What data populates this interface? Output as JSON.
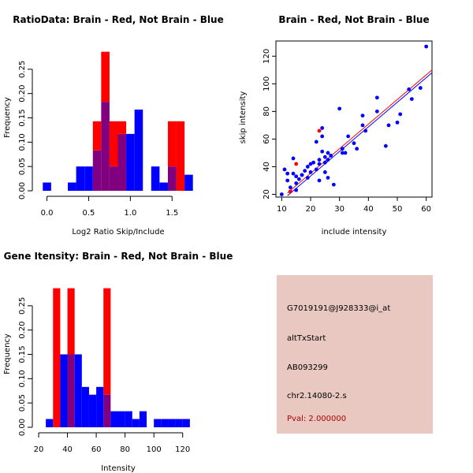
{
  "colors": {
    "red": "#ff0000",
    "blue": "#0000ff",
    "overlap": "#800080",
    "info_bg": "#e8c8c0",
    "pval_text": "#b30000"
  },
  "chart_data": [
    {
      "type": "bar",
      "id": "ratio_hist",
      "title": "RatioData: Brain - Red, Not Brain - Blue",
      "xlabel": "Log2 Ratio Skip/Include",
      "ylabel": "Frequency",
      "xlim": [
        -0.1,
        1.8
      ],
      "ylim": [
        0,
        0.3
      ],
      "xticks": [
        0.0,
        0.5,
        1.0,
        1.5
      ],
      "xtick_labels": [
        "0.0",
        "0.5",
        "1.0",
        "1.5"
      ],
      "yticks": [
        0.0,
        0.05,
        0.1,
        0.15,
        0.2,
        0.25
      ],
      "ytick_labels": [
        "0.00",
        "0.05",
        "0.10",
        "0.15",
        "0.20",
        "0.25"
      ],
      "bin_start": -0.05,
      "bin_width": 0.1,
      "bins_per_unit_note": "bins are 0.1 wide starting at -0.05",
      "bin_width_unit": 0.1,
      "series": [
        {
          "name": "Brain",
          "color": "red",
          "bins": [
            {
              "x0": 0.55,
              "x1": 0.65,
              "value": 0.143
            },
            {
              "x0": 0.65,
              "x1": 0.75,
              "value": 0.286
            },
            {
              "x0": 0.75,
              "x1": 0.85,
              "value": 0.143
            },
            {
              "x0": 0.85,
              "x1": 0.95,
              "value": 0.143
            },
            {
              "x0": 1.45,
              "x1": 1.55,
              "value": 0.143
            },
            {
              "x0": 1.55,
              "x1": 1.65,
              "value": 0.143
            }
          ]
        },
        {
          "name": "Not Brain",
          "color": "blue",
          "bins": [
            {
              "x0": -0.05,
              "x1": 0.05,
              "value": 0.017
            },
            {
              "x0": 0.25,
              "x1": 0.35,
              "value": 0.017
            },
            {
              "x0": 0.35,
              "x1": 0.45,
              "value": 0.05
            },
            {
              "x0": 0.45,
              "x1": 0.55,
              "value": 0.05
            },
            {
              "x0": 0.55,
              "x1": 0.65,
              "value": 0.083
            },
            {
              "x0": 0.65,
              "x1": 0.75,
              "value": 0.183
            },
            {
              "x0": 0.75,
              "x1": 0.85,
              "value": 0.05
            },
            {
              "x0": 0.85,
              "x1": 0.95,
              "value": 0.117
            },
            {
              "x0": 0.95,
              "x1": 1.05,
              "value": 0.117
            },
            {
              "x0": 1.05,
              "x1": 1.15,
              "value": 0.167
            },
            {
              "x0": 1.25,
              "x1": 1.35,
              "value": 0.05
            },
            {
              "x0": 1.35,
              "x1": 1.45,
              "value": 0.017
            },
            {
              "x0": 1.45,
              "x1": 1.55,
              "value": 0.05
            },
            {
              "x0": 1.65,
              "x1": 1.75,
              "value": 0.033
            }
          ]
        }
      ]
    },
    {
      "type": "scatter",
      "id": "intensity_scatter",
      "title": "Brain - Red, Not Brain - Blue",
      "xlabel": "include intensity",
      "ylabel": "skip intensity",
      "xlim": [
        8,
        62
      ],
      "ylim": [
        18,
        131
      ],
      "xticks": [
        10,
        20,
        30,
        40,
        50,
        60
      ],
      "xtick_labels": [
        "10",
        "20",
        "30",
        "40",
        "50",
        "60"
      ],
      "yticks": [
        20,
        40,
        60,
        80,
        100,
        120
      ],
      "ytick_labels": [
        "20",
        "40",
        "60",
        "80",
        "100",
        "120"
      ],
      "series": [
        {
          "name": "Not Brain",
          "color": "blue",
          "points": [
            [
              10,
              20
            ],
            [
              11,
              38
            ],
            [
              12,
              30
            ],
            [
              12,
              35
            ],
            [
              13,
              22
            ],
            [
              13,
              25
            ],
            [
              14,
              35
            ],
            [
              14,
              46
            ],
            [
              15,
              28
            ],
            [
              15,
              23
            ],
            [
              15,
              33
            ],
            [
              16,
              31
            ],
            [
              17,
              34
            ],
            [
              17,
              34
            ],
            [
              18,
              37
            ],
            [
              19,
              40
            ],
            [
              19,
              32
            ],
            [
              20,
              36
            ],
            [
              20,
              42
            ],
            [
              21,
              43
            ],
            [
              22,
              58
            ],
            [
              22,
              38
            ],
            [
              23,
              30
            ],
            [
              23,
              42
            ],
            [
              23,
              45
            ],
            [
              24,
              62
            ],
            [
              24,
              68
            ],
            [
              24,
              51
            ],
            [
              25,
              36
            ],
            [
              25,
              43
            ],
            [
              25,
              47
            ],
            [
              26,
              32
            ],
            [
              26,
              50
            ],
            [
              26,
              45
            ],
            [
              27,
              48
            ],
            [
              28,
              27
            ],
            [
              30,
              82
            ],
            [
              31,
              50
            ],
            [
              31,
              53
            ],
            [
              32,
              50
            ],
            [
              33,
              62
            ],
            [
              35,
              57
            ],
            [
              36,
              53
            ],
            [
              38,
              77
            ],
            [
              38,
              70
            ],
            [
              39,
              66
            ],
            [
              43,
              80
            ],
            [
              43,
              90
            ],
            [
              46,
              55
            ],
            [
              47,
              70
            ],
            [
              50,
              72
            ],
            [
              51,
              78
            ],
            [
              54,
              96
            ],
            [
              55,
              89
            ],
            [
              58,
              97
            ],
            [
              60,
              127
            ]
          ]
        },
        {
          "name": "Brain",
          "color": "red",
          "points": [
            [
              15,
              42
            ],
            [
              23,
              66
            ],
            [
              13,
              22
            ]
          ]
        }
      ],
      "fit_lines": [
        {
          "name": "Brain fit",
          "color": "red",
          "x": [
            12,
            62
          ],
          "y": [
            21,
            110
          ]
        },
        {
          "name": "Not Brain fit",
          "color": "blue",
          "x": [
            12,
            62
          ],
          "y": [
            19,
            108
          ]
        }
      ]
    },
    {
      "type": "bar",
      "id": "gene_intensity_hist",
      "title": "Gene Itensity: Brain - Red, Not Brain - Blue",
      "xlabel": "Intensity",
      "ylabel": "Frequency",
      "xlim": [
        20,
        130
      ],
      "ylim": [
        0,
        0.3
      ],
      "xticks": [
        20,
        40,
        60,
        80,
        100,
        120
      ],
      "xtick_labels": [
        "20",
        "40",
        "60",
        "80",
        "100",
        "120"
      ],
      "yticks": [
        0.0,
        0.05,
        0.1,
        0.15,
        0.2,
        0.25
      ],
      "ytick_labels": [
        "0.00",
        "0.05",
        "0.10",
        "0.15",
        "0.20",
        "0.25"
      ],
      "series": [
        {
          "name": "Brain",
          "color": "red",
          "bins": [
            {
              "x0": 30,
              "x1": 35,
              "value": 0.286
            },
            {
              "x0": 40,
              "x1": 45,
              "value": 0.286
            },
            {
              "x0": 65,
              "x1": 70,
              "value": 0.286
            }
          ]
        },
        {
          "name": "Not Brain",
          "color": "blue",
          "bins": [
            {
              "x0": 25,
              "x1": 30,
              "value": 0.017
            },
            {
              "x0": 35,
              "x1": 40,
              "value": 0.15
            },
            {
              "x0": 40,
              "x1": 45,
              "value": 0.15
            },
            {
              "x0": 45,
              "x1": 50,
              "value": 0.15
            },
            {
              "x0": 50,
              "x1": 55,
              "value": 0.083
            },
            {
              "x0": 55,
              "x1": 60,
              "value": 0.067
            },
            {
              "x0": 60,
              "x1": 65,
              "value": 0.083
            },
            {
              "x0": 65,
              "x1": 70,
              "value": 0.067
            },
            {
              "x0": 70,
              "x1": 75,
              "value": 0.033
            },
            {
              "x0": 75,
              "x1": 80,
              "value": 0.033
            },
            {
              "x0": 80,
              "x1": 85,
              "value": 0.033
            },
            {
              "x0": 85,
              "x1": 90,
              "value": 0.017
            },
            {
              "x0": 90,
              "x1": 95,
              "value": 0.033
            },
            {
              "x0": 100,
              "x1": 105,
              "value": 0.017
            },
            {
              "x0": 105,
              "x1": 110,
              "value": 0.017
            },
            {
              "x0": 110,
              "x1": 115,
              "value": 0.017
            },
            {
              "x0": 115,
              "x1": 120,
              "value": 0.017
            },
            {
              "x0": 120,
              "x1": 125,
              "value": 0.017
            }
          ]
        }
      ]
    }
  ],
  "info_panel": {
    "probe_id": "G7019191@J928333@i_at",
    "event_type": "altTxStart",
    "accession": "AB093299",
    "locus": "chr2.14080-2.s",
    "pval": "Pval: 2.000000"
  }
}
